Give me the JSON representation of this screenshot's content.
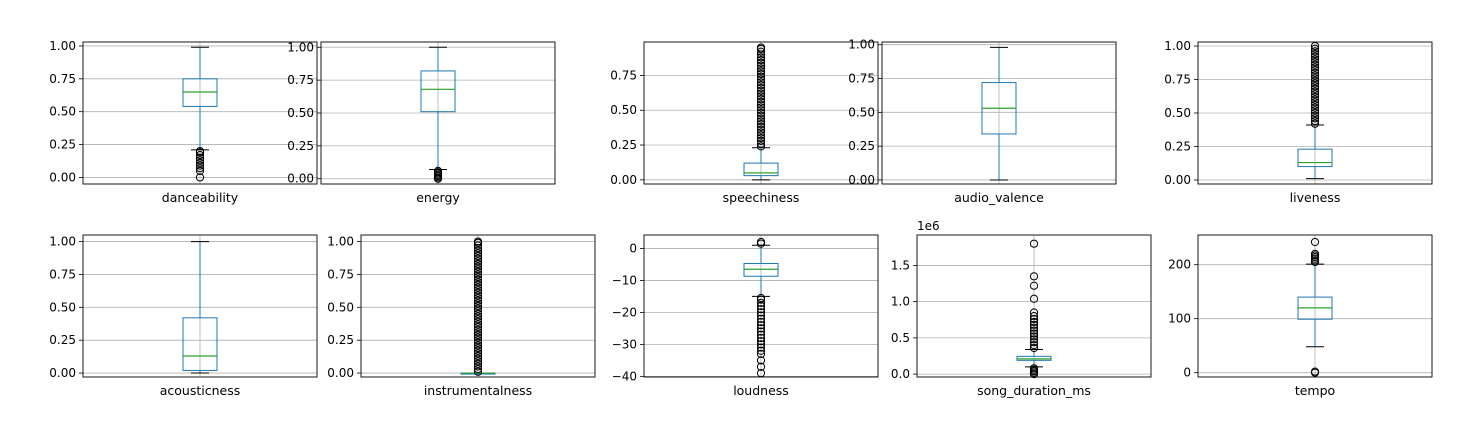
{
  "chart_data": [
    {
      "type": "box",
      "xlabel": "danceability",
      "yticks": [
        0,
        0.25,
        0.5,
        0.75,
        1.0
      ],
      "tick_labels": [
        "0.00",
        "0.25",
        "0.50",
        "0.75",
        "1.00"
      ],
      "ylim": [
        -0.05,
        1.03
      ],
      "box": {
        "whislo": 0.21,
        "q1": 0.54,
        "median": 0.65,
        "q3": 0.75,
        "whishi": 0.99
      },
      "outliers": [
        0.0,
        0.05,
        0.07,
        0.09,
        0.11,
        0.13,
        0.15,
        0.17,
        0.19,
        0.2
      ]
    },
    {
      "type": "box",
      "xlabel": "energy",
      "yticks": [
        0,
        0.25,
        0.5,
        0.75,
        1.0
      ],
      "tick_labels": [
        "0.00",
        "0.25",
        "0.50",
        "0.75",
        "1.00"
      ],
      "ylim": [
        -0.04,
        1.04
      ],
      "box": {
        "whislo": 0.07,
        "q1": 0.51,
        "median": 0.68,
        "q3": 0.82,
        "whishi": 1.0
      },
      "outliers": [
        0.0,
        0.01,
        0.02,
        0.03,
        0.04,
        0.05,
        0.06
      ]
    },
    {
      "type": "box",
      "xlabel": "speechiness",
      "yticks": [
        0,
        0.25,
        0.5,
        0.75
      ],
      "tick_labels": [
        "0.00",
        "0.25",
        "0.50",
        "0.75"
      ],
      "ylim": [
        -0.03,
        0.99
      ],
      "box": {
        "whislo": 0.0,
        "q1": 0.03,
        "median": 0.05,
        "q3": 0.12,
        "whishi": 0.23
      },
      "outliers": [
        0.24,
        0.26,
        0.28,
        0.3,
        0.32,
        0.34,
        0.36,
        0.38,
        0.4,
        0.42,
        0.44,
        0.46,
        0.48,
        0.5,
        0.52,
        0.54,
        0.56,
        0.58,
        0.6,
        0.62,
        0.64,
        0.66,
        0.68,
        0.7,
        0.72,
        0.74,
        0.76,
        0.78,
        0.8,
        0.82,
        0.84,
        0.86,
        0.88,
        0.9,
        0.92,
        0.94,
        0.95
      ]
    },
    {
      "type": "box",
      "xlabel": "audio_valence",
      "yticks": [
        0,
        0.25,
        0.5,
        0.75,
        1.0
      ],
      "tick_labels": [
        "0.00",
        "0.25",
        "0.50",
        "0.75",
        "1.00"
      ],
      "ylim": [
        -0.03,
        1.02
      ],
      "box": {
        "whislo": 0.0,
        "q1": 0.34,
        "median": 0.53,
        "q3": 0.72,
        "whishi": 0.98
      },
      "outliers": []
    },
    {
      "type": "box",
      "xlabel": "liveness",
      "yticks": [
        0,
        0.25,
        0.5,
        0.75,
        1.0
      ],
      "tick_labels": [
        "0.00",
        "0.25",
        "0.50",
        "0.75",
        "1.00"
      ],
      "ylim": [
        -0.03,
        1.03
      ],
      "box": {
        "whislo": 0.01,
        "q1": 0.1,
        "median": 0.13,
        "q3": 0.23,
        "whishi": 0.41
      },
      "outliers": [
        0.42,
        0.44,
        0.46,
        0.48,
        0.5,
        0.52,
        0.54,
        0.56,
        0.58,
        0.6,
        0.62,
        0.64,
        0.66,
        0.68,
        0.7,
        0.72,
        0.74,
        0.76,
        0.78,
        0.8,
        0.82,
        0.84,
        0.86,
        0.88,
        0.9,
        0.92,
        0.94,
        0.96,
        0.98,
        1.0
      ]
    },
    {
      "type": "box",
      "xlabel": "acousticness",
      "yticks": [
        0,
        0.25,
        0.5,
        0.75,
        1.0
      ],
      "tick_labels": [
        "0.00",
        "0.25",
        "0.50",
        "0.75",
        "1.00"
      ],
      "ylim": [
        -0.03,
        1.05
      ],
      "box": {
        "whislo": 0.0,
        "q1": 0.02,
        "median": 0.13,
        "q3": 0.42,
        "whishi": 1.0
      },
      "outliers": []
    },
    {
      "type": "box",
      "xlabel": "instrumentalness",
      "yticks": [
        0,
        0.25,
        0.5,
        0.75,
        1.0
      ],
      "tick_labels": [
        "0.00",
        "0.25",
        "0.50",
        "0.75",
        "1.00"
      ],
      "ylim": [
        -0.03,
        1.05
      ],
      "box": {
        "whislo": 0.0,
        "q1": 0.0,
        "median": 0.0,
        "q3": 0.0,
        "whishi": 0.0
      },
      "outliers": [
        0.01,
        0.03,
        0.05,
        0.07,
        0.09,
        0.11,
        0.13,
        0.15,
        0.17,
        0.19,
        0.21,
        0.23,
        0.25,
        0.27,
        0.29,
        0.31,
        0.33,
        0.35,
        0.37,
        0.39,
        0.41,
        0.43,
        0.45,
        0.47,
        0.49,
        0.51,
        0.53,
        0.55,
        0.57,
        0.59,
        0.61,
        0.63,
        0.65,
        0.67,
        0.69,
        0.71,
        0.73,
        0.75,
        0.77,
        0.79,
        0.81,
        0.83,
        0.85,
        0.87,
        0.89,
        0.91,
        0.93,
        0.95,
        0.97,
        0.99,
        1.0
      ]
    },
    {
      "type": "box",
      "xlabel": "loudness",
      "yticks": [
        -40,
        -30,
        -20,
        -10,
        0
      ],
      "tick_labels": [
        "−40",
        "−30",
        "−20",
        "−10",
        "0"
      ],
      "ylim": [
        -40.2,
        4.2
      ],
      "box": {
        "whislo": -15,
        "q1": -8.7,
        "median": -6.5,
        "q3": -4.7,
        "whishi": 1.0
      },
      "outliers": [
        1.5,
        2.0,
        -15.5,
        -16,
        -17,
        -18,
        -19,
        -20,
        -21,
        -22,
        -23,
        -24,
        -25,
        -26,
        -27,
        -28,
        -29,
        -30,
        -31,
        -32,
        -33,
        -35,
        -37,
        -39
      ]
    },
    {
      "type": "box",
      "xlabel": "song_duration_ms",
      "offset_text": "1e6",
      "yticks": [
        0,
        0.5,
        1.0,
        1.5
      ],
      "tick_labels": [
        "0.0",
        "0.5",
        "1.0",
        "1.5"
      ],
      "ylim": [
        -0.04,
        1.92
      ],
      "box": {
        "whislo": 0.1,
        "q1": 0.19,
        "median": 0.21,
        "q3": 0.245,
        "whishi": 0.34
      },
      "outliers": [
        0.0,
        0.02,
        0.04,
        0.06,
        0.08,
        0.36,
        0.4,
        0.44,
        0.48,
        0.52,
        0.56,
        0.6,
        0.64,
        0.68,
        0.72,
        0.76,
        0.8,
        0.85,
        1.04,
        1.22,
        1.35,
        1.8
      ]
    },
    {
      "type": "box",
      "xlabel": "tempo",
      "yticks": [
        0,
        100,
        200
      ],
      "tick_labels": [
        "0",
        "100",
        "200"
      ],
      "ylim": [
        -8,
        255
      ],
      "box": {
        "whislo": 48,
        "q1": 99,
        "median": 120,
        "q3": 140,
        "whishi": 201
      },
      "outliers": [
        0,
        2,
        205,
        208,
        211,
        214,
        217,
        220,
        242
      ]
    }
  ]
}
